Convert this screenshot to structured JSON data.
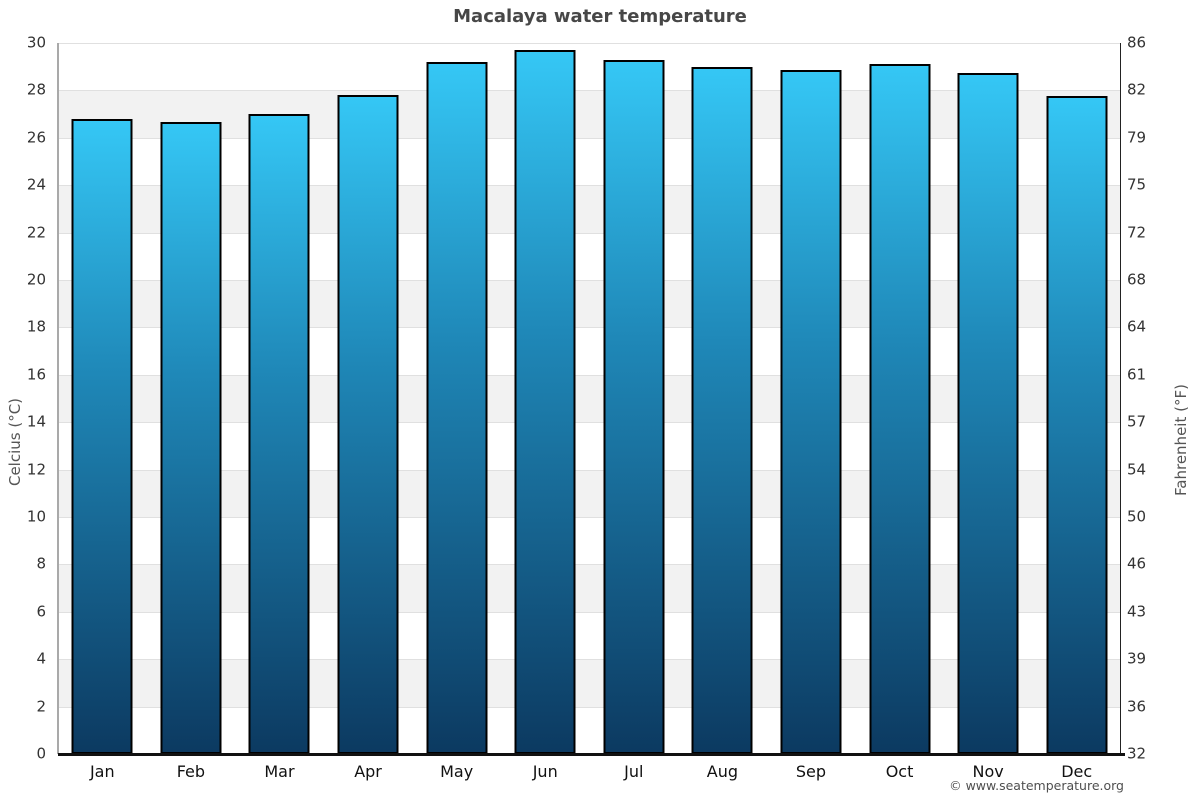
{
  "chart_data": {
    "type": "bar",
    "title": "Macalaya water temperature",
    "categories": [
      "Jan",
      "Feb",
      "Mar",
      "Apr",
      "May",
      "Jun",
      "Jul",
      "Aug",
      "Sep",
      "Oct",
      "Nov",
      "Dec"
    ],
    "values": [
      26.8,
      26.65,
      27.0,
      27.8,
      29.2,
      29.7,
      29.3,
      29.0,
      28.85,
      29.1,
      28.75,
      27.75
    ],
    "ylabel_left": "Celcius (°C)",
    "ylabel_right": "Fahrenheit (°F)",
    "ylim": [
      0,
      30
    ],
    "ytick_step": 2,
    "yticks_left": [
      "30",
      "28",
      "26",
      "24",
      "22",
      "20",
      "18",
      "16",
      "14",
      "12",
      "10",
      "8",
      "6",
      "4",
      "2",
      "0"
    ],
    "yticks_right": [
      "86",
      "82",
      "79",
      "75",
      "72",
      "68",
      "64",
      "61",
      "57",
      "54",
      "50",
      "46",
      "43",
      "39",
      "36",
      "32"
    ],
    "legend": "none",
    "grid": "alternating-bands",
    "colors": {
      "bar_top": "#35c7f5",
      "bar_mid": "#1f88b8",
      "bar_bottom": "#0c3a61",
      "bar_border": "#000000",
      "band": "#f2f2f2",
      "gridline": "#e0e0e0",
      "spine_left": "#a9a9a9",
      "spine_right": "#222222",
      "axis_bottom": "#111111",
      "title": "#474747",
      "ticks": "#333333",
      "months": "#111111",
      "axis_labels": "#555555",
      "footer": "#4f4f4f"
    }
  },
  "footer": {
    "credit": "© www.seatemperature.org"
  }
}
